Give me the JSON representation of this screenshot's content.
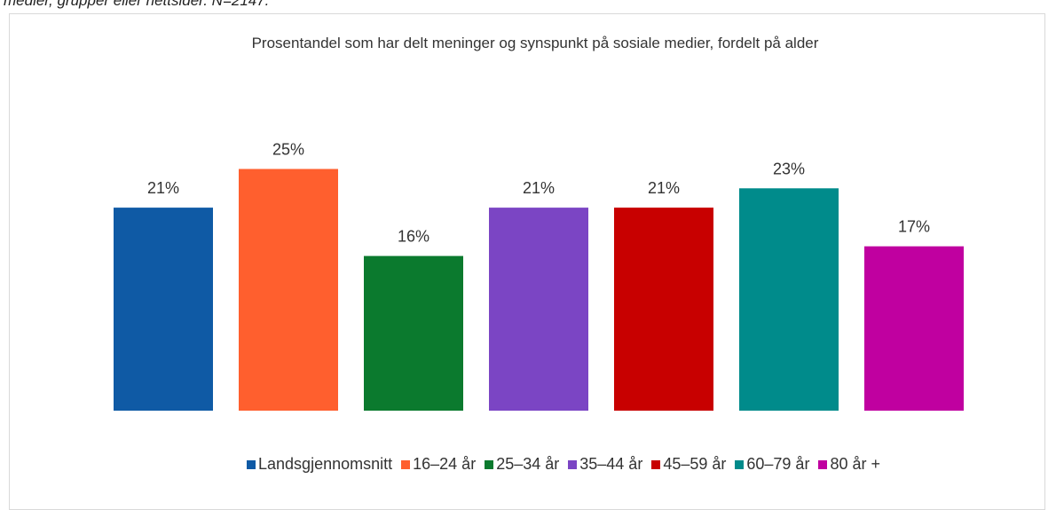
{
  "caption": "medier, grupper eller nettsider. N=2147.",
  "chart_data": {
    "type": "bar",
    "title": "Prosentandel som har delt meninger og synspunkt på sosiale medier, fordelt på alder",
    "categories": [
      "Landsgjennomsnitt",
      "16–24 år",
      "25–34 år",
      "35–44 år",
      "45–59 år",
      "60–79 år",
      "80 år +"
    ],
    "values": [
      21,
      25,
      16,
      21,
      21,
      23,
      17
    ],
    "value_labels": [
      "21%",
      "25%",
      "16%",
      "21%",
      "21%",
      "23%",
      "17%"
    ],
    "colors": [
      "#0f5aa5",
      "#ff5f2e",
      "#0b7a2e",
      "#7b45c4",
      "#c80000",
      "#008b8b",
      "#c000a0"
    ]
  }
}
